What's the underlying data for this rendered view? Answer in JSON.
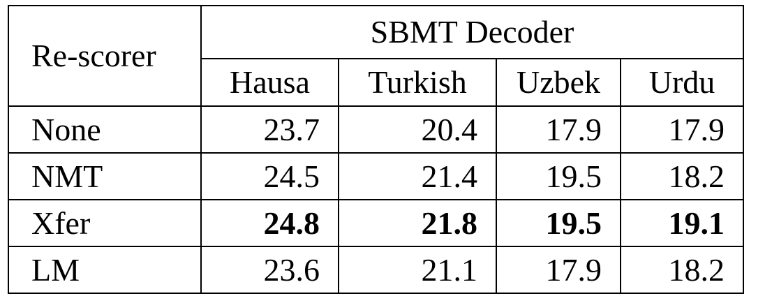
{
  "table": {
    "corner_label": "Re-scorer",
    "group_header": "SBMT Decoder",
    "columns": [
      "Hausa",
      "Turkish",
      "Uzbek",
      "Urdu"
    ],
    "rows": [
      {
        "label": "None",
        "values": [
          "23.7",
          "20.4",
          "17.9",
          "17.9"
        ],
        "bold": [
          false,
          false,
          false,
          false
        ]
      },
      {
        "label": "NMT",
        "values": [
          "24.5",
          "21.4",
          "19.5",
          "18.2"
        ],
        "bold": [
          false,
          false,
          false,
          false
        ]
      },
      {
        "label": "Xfer",
        "values": [
          "24.8",
          "21.8",
          "19.5",
          "19.1"
        ],
        "bold": [
          true,
          true,
          true,
          true
        ]
      },
      {
        "label": "LM",
        "values": [
          "23.6",
          "21.1",
          "17.9",
          "18.2"
        ],
        "bold": [
          false,
          false,
          false,
          false
        ]
      }
    ]
  }
}
